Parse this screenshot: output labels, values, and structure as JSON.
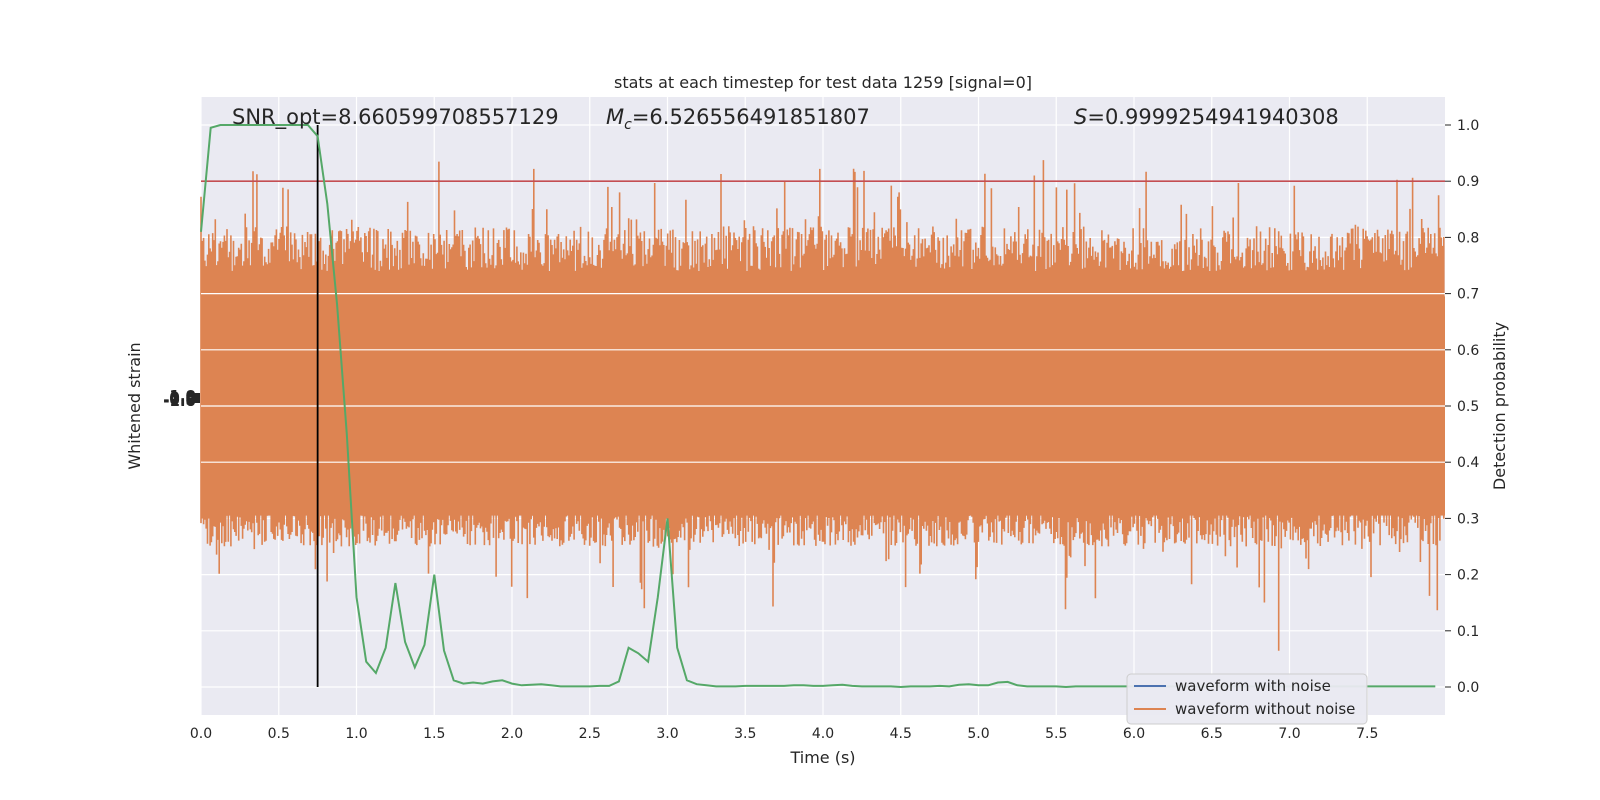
{
  "chart_data": {
    "type": "line",
    "title": "stats at each timestep for test data 1259 [signal=0]",
    "xlabel": "Time (s)",
    "ylabel_left": "Whitened strain",
    "ylabel_right": "Detection probability",
    "xlim": [
      0.0,
      8.0
    ],
    "ylim_right": [
      -0.05,
      1.05
    ],
    "x_ticks": [
      "0.0",
      "0.5",
      "1.0",
      "1.5",
      "2.0",
      "2.5",
      "3.0",
      "3.5",
      "4.0",
      "4.5",
      "5.0",
      "5.5",
      "6.0",
      "6.5",
      "7.0",
      "7.5"
    ],
    "y_ticks_right": [
      "0.0",
      "0.1",
      "0.2",
      "0.3",
      "0.4",
      "0.5",
      "0.6",
      "0.7",
      "0.8",
      "0.9",
      "1.0"
    ],
    "grid": true,
    "legend_placement": "lower-right",
    "annotations": {
      "snr": "SNR_opt=8.660599708557129",
      "mc_symbol": "M",
      "mc_sub": "c",
      "mc_value": "=6.526556491851807",
      "s_symbol": "S",
      "s_value": "=0.9999254941940308"
    },
    "threshold": 0.9,
    "marker_time": 0.75,
    "series": [
      {
        "name": "waveform with noise",
        "color": "#4c72b0"
      },
      {
        "name": "waveform without noise",
        "color": "#dd8452"
      },
      {
        "color": "#55a868",
        "x": [
          0.0,
          0.0625,
          0.125,
          0.1875,
          0.25,
          0.3125,
          0.375,
          0.4375,
          0.5,
          0.5625,
          0.625,
          0.6875,
          0.75,
          0.8125,
          0.875,
          0.9375,
          1.0,
          1.0625,
          1.125,
          1.1875,
          1.25,
          1.3125,
          1.375,
          1.4375,
          1.5,
          1.5625,
          1.625,
          1.6875,
          1.75,
          1.8125,
          1.875,
          1.9375,
          2.0,
          2.0625,
          2.125,
          2.1875,
          2.25,
          2.3125,
          2.375,
          2.4375,
          2.5,
          2.5625,
          2.625,
          2.6875,
          2.75,
          2.8125,
          2.875,
          2.9375,
          3.0,
          3.0625,
          3.125,
          3.1875,
          3.25,
          3.3125,
          3.375,
          3.4375,
          3.5,
          3.5625,
          3.625,
          3.6875,
          3.75,
          3.8125,
          3.875,
          3.9375,
          4.0,
          4.0625,
          4.125,
          4.1875,
          4.25,
          4.3125,
          4.375,
          4.4375,
          4.5,
          4.5625,
          4.625,
          4.6875,
          4.75,
          4.8125,
          4.875,
          4.9375,
          5.0,
          5.0625,
          5.125,
          5.1875,
          5.25,
          5.3125,
          5.375,
          5.4375,
          5.5,
          5.5625,
          5.625,
          5.6875,
          5.75,
          5.8125,
          5.875,
          5.9375,
          6.0,
          6.0625,
          6.125,
          6.1875,
          6.25,
          6.3125,
          6.375,
          6.4375,
          6.5,
          6.5625,
          6.625,
          6.6875,
          6.75,
          6.8125,
          6.875,
          6.9375,
          7.0,
          7.0625,
          7.125,
          7.1875,
          7.25,
          7.3125,
          7.375,
          7.4375,
          7.5,
          7.5625,
          7.625,
          7.6875,
          7.75,
          7.8125,
          7.875,
          7.9375
        ],
        "values": [
          0.81,
          0.995,
          1.0,
          1.0,
          1.0,
          1.0,
          1.0,
          1.0,
          1.0,
          1.0,
          1.0,
          1.0,
          0.98,
          0.86,
          0.68,
          0.45,
          0.16,
          0.045,
          0.025,
          0.07,
          0.185,
          0.08,
          0.035,
          0.075,
          0.2,
          0.065,
          0.012,
          0.006,
          0.008,
          0.006,
          0.01,
          0.012,
          0.006,
          0.003,
          0.004,
          0.005,
          0.003,
          0.001,
          0.001,
          0.001,
          0.001,
          0.002,
          0.002,
          0.01,
          0.07,
          0.06,
          0.045,
          0.16,
          0.3,
          0.07,
          0.012,
          0.005,
          0.003,
          0.001,
          0.001,
          0.001,
          0.002,
          0.002,
          0.002,
          0.002,
          0.002,
          0.003,
          0.003,
          0.002,
          0.002,
          0.003,
          0.004,
          0.002,
          0.001,
          0.001,
          0.001,
          0.001,
          0.0,
          0.001,
          0.001,
          0.001,
          0.002,
          0.001,
          0.004,
          0.005,
          0.003,
          0.003,
          0.008,
          0.009,
          0.003,
          0.001,
          0.001,
          0.001,
          0.001,
          0.0,
          0.001,
          0.001,
          0.001,
          0.001,
          0.001,
          0.001,
          0.001,
          0.001,
          0.001,
          0.001,
          0.001,
          0.001,
          0.001,
          0.001,
          0.001,
          0.001,
          0.001,
          0.001,
          0.001,
          0.001,
          0.001,
          0.001,
          0.001,
          0.001,
          0.001,
          0.001,
          0.001,
          0.001,
          0.001,
          0.001,
          0.001,
          0.001,
          0.001,
          0.001,
          0.001,
          0.001,
          0.001,
          0.001
        ]
      }
    ],
    "left_axis_tick_marks": [
      "-1.0",
      "-0.5",
      "0.0",
      "0.5",
      "1.0"
    ],
    "colors": {
      "background": "#eaeaf2",
      "grid": "#ffffff",
      "threshold": "#c44e52",
      "marker": "#000000"
    }
  }
}
